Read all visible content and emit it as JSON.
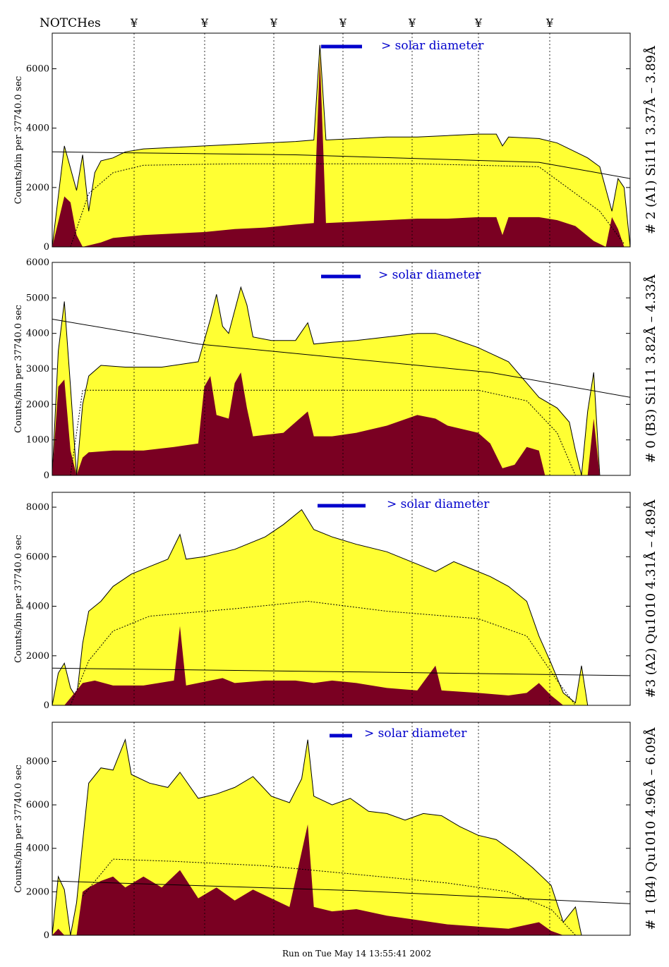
{
  "header": {
    "notches_label": "NOTCHes",
    "notch_symbol": "¥",
    "notch_count": 7
  },
  "footer": {
    "run_text": "Run on Tue May 14 13:55:41 2002"
  },
  "colors": {
    "fill_total": "#ffff33",
    "fill_low": "#7a0022",
    "solar_bar": "#0000cc",
    "axis": "#000000"
  },
  "chart_data": [
    {
      "type": "area",
      "right_label": "# 2 (A1) Si111  3.37Å – 3.89Å",
      "ylabel": "Counts/bin per  37740.0 sec",
      "solar_label": "> solar diameter",
      "ylim": [
        0,
        7200
      ],
      "yticks": [
        0,
        2000,
        4000,
        6000
      ],
      "total": [
        [
          0,
          0
        ],
        [
          2,
          3400
        ],
        [
          4,
          1900
        ],
        [
          5,
          3100
        ],
        [
          6,
          1200
        ],
        [
          7,
          2500
        ],
        [
          8,
          2900
        ],
        [
          10,
          3000
        ],
        [
          12,
          3200
        ],
        [
          15,
          3300
        ],
        [
          20,
          3350
        ],
        [
          25,
          3400
        ],
        [
          30,
          3450
        ],
        [
          35,
          3500
        ],
        [
          40,
          3550
        ],
        [
          43,
          3600
        ],
        [
          44,
          6800
        ],
        [
          45,
          3600
        ],
        [
          50,
          3650
        ],
        [
          55,
          3700
        ],
        [
          60,
          3700
        ],
        [
          65,
          3750
        ],
        [
          70,
          3800
        ],
        [
          73,
          3800
        ],
        [
          74,
          3400
        ],
        [
          75,
          3700
        ],
        [
          80,
          3650
        ],
        [
          83,
          3500
        ],
        [
          86,
          3200
        ],
        [
          88,
          3000
        ],
        [
          90,
          2700
        ],
        [
          92,
          1200
        ],
        [
          93,
          2300
        ],
        [
          94,
          2000
        ],
        [
          95,
          0
        ]
      ],
      "low": [
        [
          0,
          0
        ],
        [
          2,
          1700
        ],
        [
          3,
          1500
        ],
        [
          4,
          400
        ],
        [
          5,
          0
        ],
        [
          8,
          150
        ],
        [
          10,
          300
        ],
        [
          15,
          400
        ],
        [
          20,
          450
        ],
        [
          25,
          500
        ],
        [
          30,
          600
        ],
        [
          35,
          650
        ],
        [
          40,
          750
        ],
        [
          43,
          800
        ],
        [
          44,
          6400
        ],
        [
          45,
          800
        ],
        [
          50,
          850
        ],
        [
          55,
          900
        ],
        [
          60,
          950
        ],
        [
          65,
          950
        ],
        [
          70,
          1000
        ],
        [
          73,
          1000
        ],
        [
          74,
          400
        ],
        [
          75,
          1000
        ],
        [
          80,
          1000
        ],
        [
          83,
          900
        ],
        [
          86,
          700
        ],
        [
          89,
          200
        ],
        [
          91,
          0
        ],
        [
          92,
          1000
        ],
        [
          93,
          600
        ],
        [
          94,
          0
        ],
        [
          95,
          0
        ]
      ],
      "fit_line": [
        [
          0,
          3200
        ],
        [
          40,
          3100
        ],
        [
          80,
          2850
        ],
        [
          95,
          2300
        ]
      ],
      "dotted_line": [
        [
          3,
          0
        ],
        [
          6,
          1800
        ],
        [
          10,
          2500
        ],
        [
          15,
          2750
        ],
        [
          30,
          2800
        ],
        [
          60,
          2800
        ],
        [
          80,
          2700
        ],
        [
          90,
          1200
        ],
        [
          94,
          100
        ]
      ]
    },
    {
      "type": "area",
      "right_label": "# 0 (B3) Si111  3.82Å – 4.33Å",
      "ylabel": "Counts/bin per  37740.0 sec",
      "solar_label": "> solar diameter",
      "ylim": [
        0,
        6000
      ],
      "yticks": [
        0,
        1000,
        2000,
        3000,
        4000,
        5000,
        6000
      ],
      "total": [
        [
          0,
          0
        ],
        [
          1,
          3500
        ],
        [
          2,
          4900
        ],
        [
          3,
          2500
        ],
        [
          4,
          0
        ],
        [
          5,
          2000
        ],
        [
          6,
          2800
        ],
        [
          8,
          3100
        ],
        [
          12,
          3050
        ],
        [
          18,
          3050
        ],
        [
          24,
          3200
        ],
        [
          26,
          4400
        ],
        [
          27,
          5100
        ],
        [
          28,
          4200
        ],
        [
          29,
          4000
        ],
        [
          31,
          5300
        ],
        [
          32,
          4800
        ],
        [
          33,
          3900
        ],
        [
          36,
          3800
        ],
        [
          40,
          3800
        ],
        [
          42,
          4300
        ],
        [
          43,
          3700
        ],
        [
          46,
          3750
        ],
        [
          50,
          3800
        ],
        [
          55,
          3900
        ],
        [
          60,
          4000
        ],
        [
          63,
          4000
        ],
        [
          65,
          3900
        ],
        [
          70,
          3600
        ],
        [
          75,
          3200
        ],
        [
          78,
          2600
        ],
        [
          80,
          2200
        ],
        [
          83,
          1900
        ],
        [
          85,
          1500
        ],
        [
          86,
          700
        ],
        [
          87,
          0
        ],
        [
          88,
          1800
        ],
        [
          89,
          2900
        ],
        [
          90,
          0
        ],
        [
          95,
          0
        ]
      ],
      "low": [
        [
          0,
          0
        ],
        [
          1,
          2500
        ],
        [
          2,
          2700
        ],
        [
          3,
          700
        ],
        [
          4,
          0
        ],
        [
          5,
          500
        ],
        [
          6,
          650
        ],
        [
          10,
          700
        ],
        [
          15,
          700
        ],
        [
          20,
          800
        ],
        [
          24,
          900
        ],
        [
          25,
          2500
        ],
        [
          26,
          2800
        ],
        [
          27,
          1700
        ],
        [
          29,
          1600
        ],
        [
          30,
          2600
        ],
        [
          31,
          2900
        ],
        [
          32,
          1900
        ],
        [
          33,
          1100
        ],
        [
          38,
          1200
        ],
        [
          42,
          1800
        ],
        [
          43,
          1100
        ],
        [
          46,
          1100
        ],
        [
          50,
          1200
        ],
        [
          55,
          1400
        ],
        [
          60,
          1700
        ],
        [
          63,
          1600
        ],
        [
          65,
          1400
        ],
        [
          70,
          1200
        ],
        [
          72,
          900
        ],
        [
          74,
          200
        ],
        [
          76,
          300
        ],
        [
          78,
          800
        ],
        [
          80,
          700
        ],
        [
          81,
          0
        ],
        [
          88,
          0
        ],
        [
          89,
          1600
        ],
        [
          90,
          0
        ],
        [
          95,
          0
        ]
      ],
      "fit_line": [
        [
          0,
          4400
        ],
        [
          24,
          3700
        ],
        [
          72,
          2900
        ],
        [
          95,
          2200
        ]
      ],
      "dotted_line": [
        [
          3,
          0
        ],
        [
          5,
          2400
        ],
        [
          40,
          2400
        ],
        [
          70,
          2400
        ],
        [
          78,
          2100
        ],
        [
          83,
          1200
        ],
        [
          86,
          0
        ]
      ]
    },
    {
      "type": "area",
      "right_label": "#3 (A2) Qu1010  4.31Å – 4.89Å",
      "ylabel": "Counts/bin per  37740.0 sec",
      "solar_label": "> solar diameter",
      "ylim": [
        0,
        8600
      ],
      "yticks": [
        0,
        2000,
        4000,
        6000,
        8000
      ],
      "total": [
        [
          0,
          0
        ],
        [
          1,
          1300
        ],
        [
          2,
          1700
        ],
        [
          3,
          700
        ],
        [
          4,
          300
        ],
        [
          5,
          2500
        ],
        [
          6,
          3800
        ],
        [
          8,
          4200
        ],
        [
          10,
          4800
        ],
        [
          13,
          5300
        ],
        [
          16,
          5600
        ],
        [
          19,
          5900
        ],
        [
          21,
          6900
        ],
        [
          22,
          5900
        ],
        [
          25,
          6000
        ],
        [
          30,
          6300
        ],
        [
          35,
          6800
        ],
        [
          38,
          7300
        ],
        [
          41,
          7900
        ],
        [
          43,
          7100
        ],
        [
          46,
          6800
        ],
        [
          50,
          6500
        ],
        [
          55,
          6200
        ],
        [
          58,
          5900
        ],
        [
          60,
          5700
        ],
        [
          63,
          5400
        ],
        [
          66,
          5800
        ],
        [
          69,
          5500
        ],
        [
          72,
          5200
        ],
        [
          75,
          4800
        ],
        [
          78,
          4200
        ],
        [
          80,
          2800
        ],
        [
          82,
          1700
        ],
        [
          84,
          500
        ],
        [
          86,
          100
        ],
        [
          87,
          1600
        ],
        [
          88,
          0
        ],
        [
          95,
          0
        ]
      ],
      "low": [
        [
          0,
          0
        ],
        [
          2,
          0
        ],
        [
          3,
          300
        ],
        [
          5,
          900
        ],
        [
          7,
          1000
        ],
        [
          10,
          800
        ],
        [
          15,
          800
        ],
        [
          20,
          1000
        ],
        [
          21,
          3200
        ],
        [
          22,
          800
        ],
        [
          24,
          900
        ],
        [
          28,
          1100
        ],
        [
          30,
          900
        ],
        [
          35,
          1000
        ],
        [
          40,
          1000
        ],
        [
          43,
          900
        ],
        [
          46,
          1000
        ],
        [
          50,
          900
        ],
        [
          55,
          700
        ],
        [
          60,
          600
        ],
        [
          63,
          1600
        ],
        [
          64,
          600
        ],
        [
          70,
          500
        ],
        [
          75,
          400
        ],
        [
          78,
          500
        ],
        [
          80,
          900
        ],
        [
          82,
          400
        ],
        [
          84,
          0
        ],
        [
          95,
          0
        ]
      ],
      "fit_line": [
        [
          0,
          1500
        ],
        [
          50,
          1350
        ],
        [
          95,
          1200
        ]
      ],
      "dotted_line": [
        [
          3,
          0
        ],
        [
          6,
          1800
        ],
        [
          10,
          3000
        ],
        [
          16,
          3600
        ],
        [
          30,
          3900
        ],
        [
          42,
          4200
        ],
        [
          55,
          3800
        ],
        [
          70,
          3500
        ],
        [
          78,
          2800
        ],
        [
          83,
          1000
        ],
        [
          86,
          0
        ]
      ]
    },
    {
      "type": "area",
      "right_label": "# 1 (B4) Qu1010 4.96Å – 6.09Å",
      "ylabel": "Counts/bin per  37740.0 sec",
      "solar_label": "> solar diameter",
      "ylim": [
        0,
        9800
      ],
      "yticks": [
        0,
        2000,
        4000,
        6000,
        8000
      ],
      "total": [
        [
          0,
          0
        ],
        [
          1,
          2700
        ],
        [
          2,
          2100
        ],
        [
          3,
          0
        ],
        [
          4,
          1500
        ],
        [
          5,
          4300
        ],
        [
          6,
          7000
        ],
        [
          8,
          7700
        ],
        [
          10,
          7600
        ],
        [
          12,
          9000
        ],
        [
          13,
          7400
        ],
        [
          16,
          7000
        ],
        [
          19,
          6800
        ],
        [
          21,
          7500
        ],
        [
          24,
          6300
        ],
        [
          27,
          6500
        ],
        [
          30,
          6800
        ],
        [
          33,
          7300
        ],
        [
          36,
          6400
        ],
        [
          39,
          6100
        ],
        [
          41,
          7200
        ],
        [
          42,
          9000
        ],
        [
          43,
          6400
        ],
        [
          46,
          6000
        ],
        [
          49,
          6300
        ],
        [
          52,
          5700
        ],
        [
          55,
          5600
        ],
        [
          58,
          5300
        ],
        [
          61,
          5600
        ],
        [
          64,
          5500
        ],
        [
          67,
          5000
        ],
        [
          70,
          4600
        ],
        [
          73,
          4400
        ],
        [
          76,
          3800
        ],
        [
          79,
          3100
        ],
        [
          82,
          2300
        ],
        [
          84,
          600
        ],
        [
          86,
          1300
        ],
        [
          87,
          0
        ],
        [
          95,
          0
        ]
      ],
      "low": [
        [
          0,
          0
        ],
        [
          1,
          300
        ],
        [
          2,
          0
        ],
        [
          4,
          0
        ],
        [
          5,
          2000
        ],
        [
          6,
          2200
        ],
        [
          8,
          2500
        ],
        [
          10,
          2700
        ],
        [
          12,
          2200
        ],
        [
          15,
          2700
        ],
        [
          18,
          2200
        ],
        [
          21,
          3000
        ],
        [
          24,
          1700
        ],
        [
          27,
          2200
        ],
        [
          30,
          1600
        ],
        [
          33,
          2100
        ],
        [
          36,
          1700
        ],
        [
          39,
          1300
        ],
        [
          42,
          5100
        ],
        [
          43,
          1300
        ],
        [
          46,
          1100
        ],
        [
          50,
          1200
        ],
        [
          55,
          900
        ],
        [
          60,
          700
        ],
        [
          65,
          500
        ],
        [
          70,
          400
        ],
        [
          75,
          300
        ],
        [
          80,
          600
        ],
        [
          82,
          200
        ],
        [
          84,
          0
        ],
        [
          95,
          0
        ]
      ],
      "fit_line": [
        [
          0,
          2500
        ],
        [
          50,
          2050
        ],
        [
          95,
          1450
        ]
      ],
      "dotted_line": [
        [
          5,
          1800
        ],
        [
          10,
          3500
        ],
        [
          20,
          3400
        ],
        [
          35,
          3200
        ],
        [
          50,
          2800
        ],
        [
          65,
          2400
        ],
        [
          75,
          2000
        ],
        [
          82,
          1200
        ],
        [
          86,
          0
        ]
      ]
    }
  ]
}
